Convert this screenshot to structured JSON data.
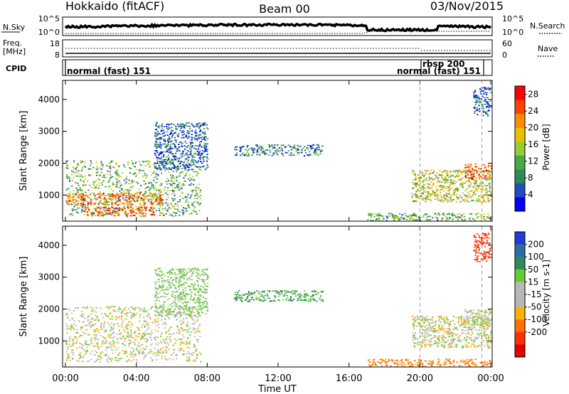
{
  "header": {
    "title_left": "Hokkaido (fitACF)",
    "title_center": "Beam 00",
    "title_right": "03/Nov/2015"
  },
  "top_panels": {
    "nsky": {
      "label": "N.Sky",
      "right_label": "N.Search",
      "ticks_left": [
        "10^5",
        "10^0"
      ],
      "ticks_right": [
        "10^5",
        "10^0"
      ]
    },
    "freq": {
      "label_line1": "Freq.",
      "label_line2": "[MHz]",
      "right_label": "Nave",
      "ticks_left": [
        "18",
        "8"
      ],
      "ticks_right": [
        "60",
        "0"
      ]
    },
    "cpid": {
      "label": "CPID",
      "segments": [
        {
          "text": "normal (fast) 151",
          "start_hour": 0
        },
        {
          "text": "rbsp 200",
          "start_hour": 20.0
        },
        {
          "text": "normal (fast) 151",
          "start_hour": 23.5
        }
      ]
    }
  },
  "colors": {
    "power": [
      "#0000ff",
      "#1f4fbf",
      "#2e8b57",
      "#44aa44",
      "#99cc33",
      "#e8c000",
      "#ff8c00",
      "#ff4000",
      "#ff0000"
    ],
    "velocity": [
      "#1e3cd8",
      "#2a6fa0",
      "#2e8b57",
      "#66cc33",
      "#b8b8b8",
      "#b8b8b8",
      "#ffb000",
      "#ff7000",
      "#ff3000",
      "#e00000"
    ],
    "ground": "#b8b8b8"
  },
  "chart_data": [
    {
      "type": "heatmap",
      "panel": "power",
      "ylabel": "Slant Range [km]",
      "xlabel": "",
      "x_range_hours": [
        0,
        24
      ],
      "ylim": [
        180,
        4600
      ],
      "yticks": [
        1000,
        2000,
        3000,
        4000
      ],
      "xticks": [
        "00:00",
        "04:00",
        "08:00",
        "12:00",
        "16:00",
        "20:00",
        "00:00"
      ],
      "colorbar": {
        "label": "Power [dB]",
        "ticks": [
          "4",
          "8",
          "12",
          "16",
          "20",
          "24",
          "28"
        ],
        "range": [
          0,
          30
        ]
      },
      "mode_change_hours": [
        20.0,
        23.5
      ],
      "regions": [
        {
          "t0": 0.0,
          "t1": 7.6,
          "r0": 350,
          "r1": 2100,
          "level": 12
        },
        {
          "t0": 0.0,
          "t1": 5.5,
          "r0": 700,
          "r1": 1100,
          "level": 22
        },
        {
          "t0": 1.0,
          "t1": 5.0,
          "r0": 350,
          "r1": 650,
          "level": 24
        },
        {
          "t0": 5.0,
          "t1": 8.0,
          "r0": 1800,
          "r1": 3300,
          "level": 6
        },
        {
          "t0": 9.5,
          "t1": 14.5,
          "r0": 2250,
          "r1": 2600,
          "level": 8
        },
        {
          "t0": 17.0,
          "t1": 24.0,
          "r0": 200,
          "r1": 450,
          "level": 12
        },
        {
          "t0": 19.5,
          "t1": 24.0,
          "r0": 800,
          "r1": 1800,
          "level": 16
        },
        {
          "t0": 22.5,
          "t1": 24.0,
          "r0": 1500,
          "r1": 2000,
          "level": 24
        },
        {
          "t0": 23.0,
          "t1": 24.0,
          "r0": 3500,
          "r1": 4400,
          "level": 6
        }
      ]
    },
    {
      "type": "heatmap",
      "panel": "velocity",
      "ylabel": "Slant Range [km]",
      "xlabel": "Time UT",
      "x_range_hours": [
        0,
        24
      ],
      "ylim": [
        180,
        4600
      ],
      "yticks": [
        1000,
        2000,
        3000,
        4000
      ],
      "xticks": [
        "00:00",
        "04:00",
        "08:00",
        "12:00",
        "16:00",
        "20:00",
        "00:00"
      ],
      "colorbar": {
        "label": "Velocity [m s-1]",
        "ticks": [
          "200",
          "100",
          "50",
          "15",
          "-15",
          "-50",
          "-100",
          "-200"
        ],
        "range": [
          -250,
          250
        ]
      },
      "mode_change_hours": [
        20.0,
        23.5
      ],
      "regions": [
        {
          "t0": 0.0,
          "t1": 7.6,
          "r0": 350,
          "r1": 2100,
          "level": 0
        },
        {
          "t0": 5.0,
          "t1": 8.0,
          "r0": 1800,
          "r1": 3300,
          "level": 20
        },
        {
          "t0": 9.5,
          "t1": 14.5,
          "r0": 2250,
          "r1": 2600,
          "level": 60
        },
        {
          "t0": 17.0,
          "t1": 24.0,
          "r0": 200,
          "r1": 450,
          "level": -60
        },
        {
          "t0": 19.5,
          "t1": 24.0,
          "r0": 800,
          "r1": 1800,
          "level": 0
        },
        {
          "t0": 22.5,
          "t1": 24.0,
          "r0": 1500,
          "r1": 2000,
          "level": 0
        },
        {
          "t0": 23.0,
          "t1": 24.0,
          "r0": 3500,
          "r1": 4400,
          "level": -150
        }
      ]
    }
  ]
}
